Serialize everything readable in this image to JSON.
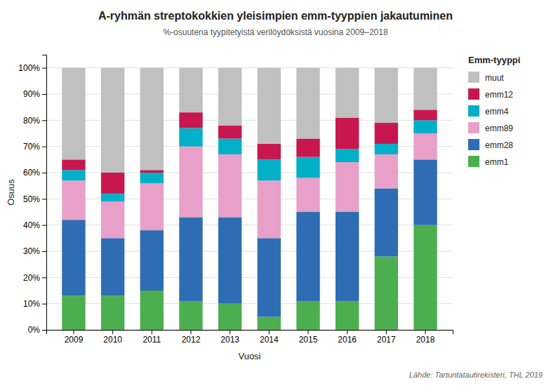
{
  "chart_data": {
    "type": "bar",
    "stacked": true,
    "title": "A-ryhmän streptokokkien yleisimpien emm-tyyppien jakautuminen",
    "subtitle": "%-osuutena tyypitetyistä verilöydöksistä vuosina 2009–2018",
    "xlabel": "Vuosi",
    "ylabel": "Osuus",
    "source": "Lähde: Tartuntatautirekisteri, THL 2019",
    "legend_title": "Emm-tyyppi",
    "legend": "right",
    "grid": true,
    "categories": [
      "2009",
      "2010",
      "2011",
      "2012",
      "2013",
      "2014",
      "2015",
      "2016",
      "2017",
      "2018"
    ],
    "series": [
      {
        "name": "emm1",
        "color": "#4caf4f",
        "values": [
          13,
          13,
          15,
          11,
          10,
          5,
          11,
          11,
          28,
          40
        ]
      },
      {
        "name": "emm28",
        "color": "#2e6db4",
        "values": [
          29,
          22,
          23,
          32,
          33,
          30,
          34,
          34,
          26,
          25
        ]
      },
      {
        "name": "emm89",
        "color": "#e8a0c8",
        "values": [
          15,
          14,
          18,
          27,
          24,
          22,
          13,
          19,
          13,
          10
        ]
      },
      {
        "name": "emm4",
        "color": "#00b0c8",
        "values": [
          4,
          3,
          4,
          7,
          6,
          8,
          8,
          5,
          4,
          5
        ]
      },
      {
        "name": "emm12",
        "color": "#c8174f",
        "values": [
          4,
          8,
          1,
          6,
          5,
          6,
          7,
          12,
          8,
          4
        ]
      },
      {
        "name": "muut",
        "color": "#c0c0c0",
        "values": [
          35,
          40,
          39,
          17,
          22,
          29,
          27,
          19,
          21,
          16
        ]
      }
    ],
    "ylim": [
      0,
      105
    ],
    "yticks": [
      {
        "value": 0,
        "label": "0%"
      },
      {
        "value": 10,
        "label": "10%"
      },
      {
        "value": 20,
        "label": "20%"
      },
      {
        "value": 30,
        "label": "30%"
      },
      {
        "value": 40,
        "label": "40%"
      },
      {
        "value": 50,
        "label": "50%"
      },
      {
        "value": 60,
        "label": "60%"
      },
      {
        "value": 70,
        "label": "70%"
      },
      {
        "value": 80,
        "label": "80%"
      },
      {
        "value": 90,
        "label": "90%"
      },
      {
        "value": 100,
        "label": "100%"
      }
    ]
  }
}
